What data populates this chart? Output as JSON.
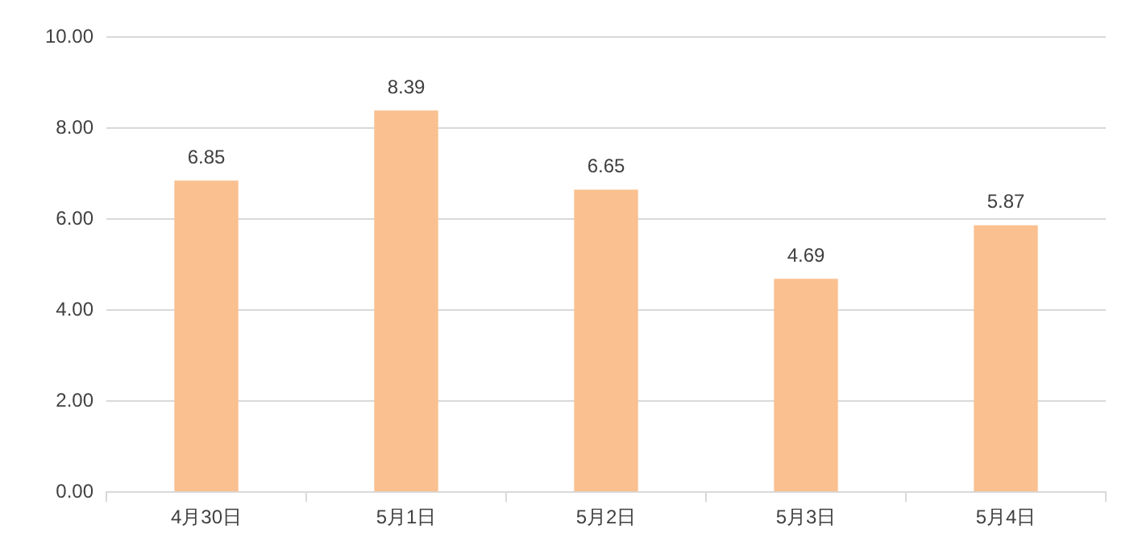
{
  "chart_data": {
    "type": "bar",
    "categories": [
      "4月30日",
      "5月1日",
      "5月2日",
      "5月3日",
      "5月4日"
    ],
    "values": [
      6.85,
      8.39,
      6.65,
      4.69,
      5.87
    ],
    "color": "#fac090",
    "ylim": [
      0,
      10
    ],
    "yticks": [
      {
        "value": 0,
        "label": "0.00"
      },
      {
        "value": 2,
        "label": "2.00"
      },
      {
        "value": 4,
        "label": "4.00"
      },
      {
        "value": 6,
        "label": "6.00"
      },
      {
        "value": 8,
        "label": "8.00"
      },
      {
        "value": 10,
        "label": "10.00"
      }
    ],
    "grid": "y",
    "data_labels": true
  }
}
